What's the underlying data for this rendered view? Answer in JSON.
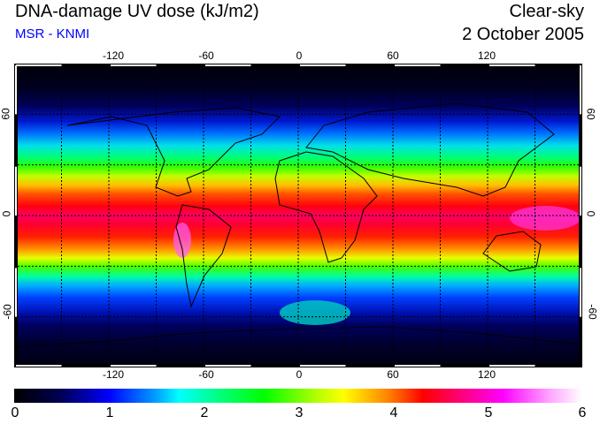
{
  "header": {
    "title": "DNA-damage UV dose (kJ/m2)",
    "source": "MSR - KNMI",
    "condition": "Clear-sky",
    "date": "2 October 2005"
  },
  "axes": {
    "lon_ticks": [
      "-120",
      "-60",
      "0",
      "60",
      "120"
    ],
    "lat_ticks": [
      "60",
      "0",
      "-60"
    ]
  },
  "colorbar": {
    "labels": [
      "0",
      "1",
      "2",
      "3",
      "4",
      "5",
      "6"
    ],
    "min": 0,
    "max": 6,
    "unit": "kJ/m2"
  }
}
